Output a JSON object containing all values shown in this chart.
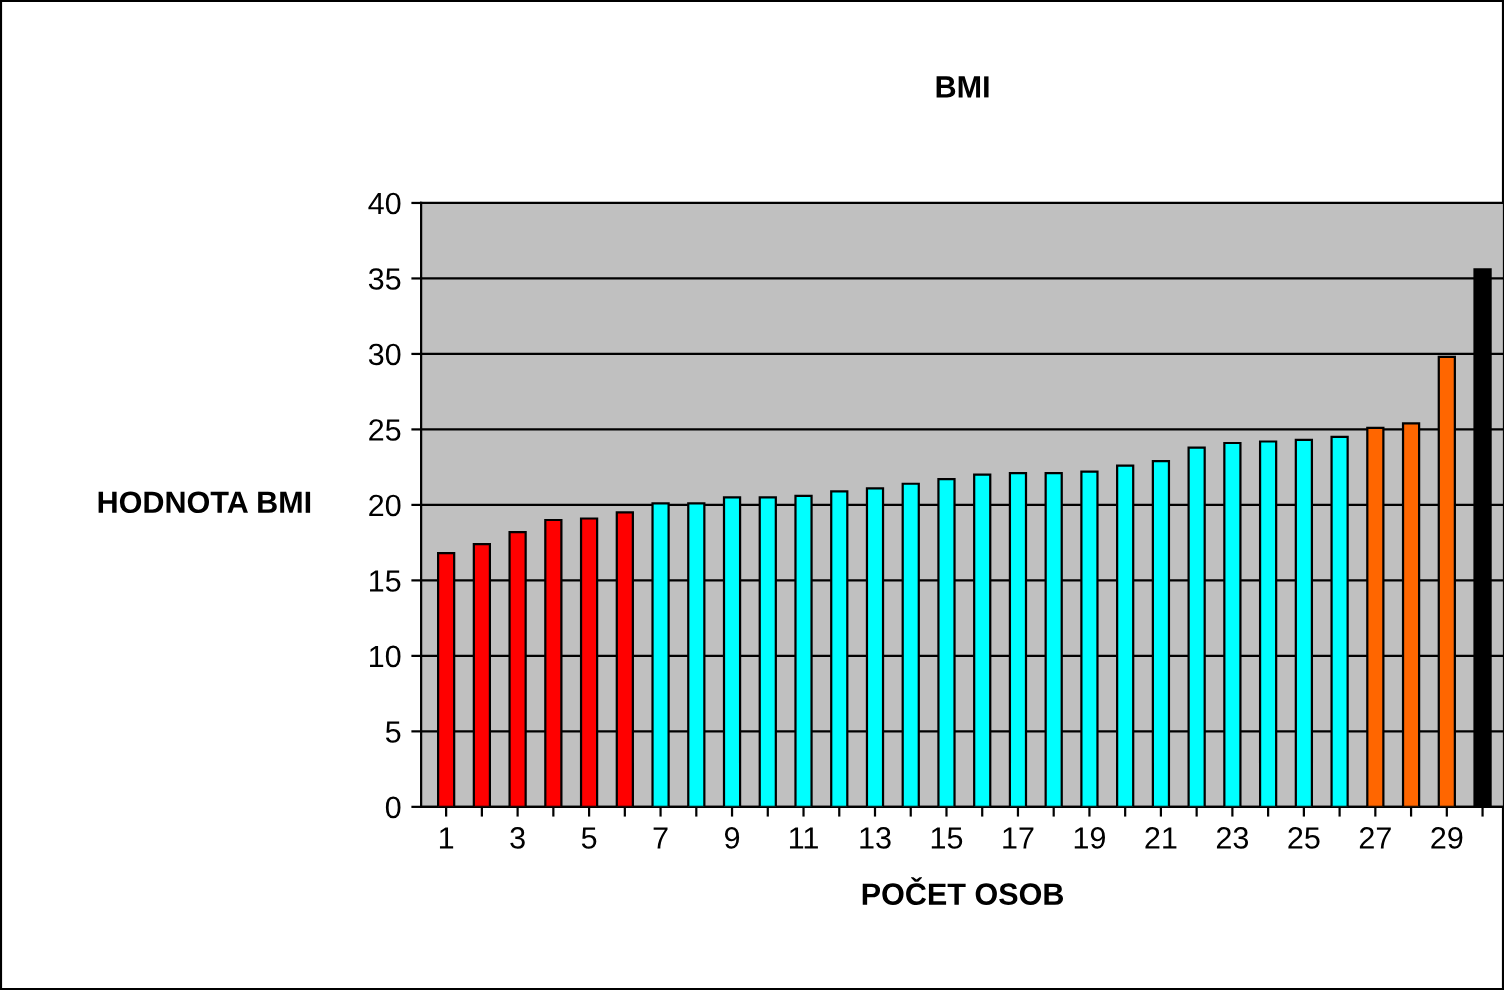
{
  "chart_data": {
    "type": "bar",
    "title": "BMI",
    "xlabel": "POČET OSOB",
    "ylabel": "HODNOTA BMI",
    "categories": [
      "1",
      null,
      "3",
      null,
      "5",
      null,
      "7",
      null,
      "9",
      null,
      "11",
      null,
      "13",
      null,
      "15",
      null,
      "17",
      null,
      "19",
      null,
      "21",
      null,
      "23",
      null,
      "25",
      null,
      "27",
      null,
      "29",
      null
    ],
    "values": [
      16.8,
      17.4,
      18.2,
      19.0,
      19.1,
      19.5,
      20.1,
      20.1,
      20.5,
      20.5,
      20.6,
      20.9,
      21.1,
      21.4,
      21.7,
      22.0,
      22.1,
      22.1,
      22.2,
      22.6,
      22.9,
      23.8,
      24.1,
      24.2,
      24.3,
      24.5,
      25.1,
      25.4,
      29.8,
      35.6
    ],
    "colors": [
      "#ff0000",
      "#ff0000",
      "#ff0000",
      "#ff0000",
      "#ff0000",
      "#ff0000",
      "#00ffff",
      "#00ffff",
      "#00ffff",
      "#00ffff",
      "#00ffff",
      "#00ffff",
      "#00ffff",
      "#00ffff",
      "#00ffff",
      "#00ffff",
      "#00ffff",
      "#00ffff",
      "#00ffff",
      "#00ffff",
      "#00ffff",
      "#00ffff",
      "#00ffff",
      "#00ffff",
      "#00ffff",
      "#00ffff",
      "#ff6600",
      "#ff6600",
      "#ff6600",
      "#000000"
    ],
    "ylim": [
      0,
      40
    ],
    "yticks": [
      0,
      5,
      10,
      15,
      20,
      25,
      30,
      35,
      40
    ],
    "grid": "y"
  }
}
